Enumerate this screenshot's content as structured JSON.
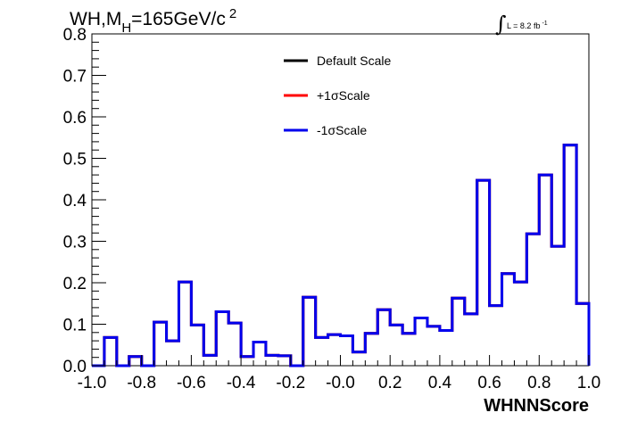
{
  "chart_data": {
    "type": "histogram",
    "title": {
      "main": "WH,M",
      "subscript": "H",
      "rest": "=165GeV/c",
      "superscript": "2"
    },
    "lumi": {
      "integral_symbol": "∫",
      "text": "L = 8.2 fb",
      "superscript": "-1"
    },
    "xlabel": "WHNNScore",
    "xlim": [
      -1.0,
      1.0
    ],
    "ylim": [
      0.0,
      0.8
    ],
    "x_ticks": [
      -1.0,
      -0.8,
      -0.6,
      -0.4,
      -0.2,
      0.0,
      0.2,
      0.4,
      0.6,
      0.8,
      1.0
    ],
    "x_tick_labels": [
      "-1.0",
      "-0.8",
      "-0.6",
      "-0.4",
      "-0.2",
      "-0.0",
      "0.2",
      "0.4",
      "0.6",
      "0.8",
      "1.0"
    ],
    "y_ticks": [
      0.0,
      0.1,
      0.2,
      0.3,
      0.4,
      0.5,
      0.6,
      0.7,
      0.8
    ],
    "y_tick_labels": [
      "0.0",
      "0.1",
      "0.2",
      "0.3",
      "0.4",
      "0.5",
      "0.6",
      "0.7",
      "0.8"
    ],
    "bin_edges": [
      -1.0,
      -0.95,
      -0.9,
      -0.85,
      -0.8,
      -0.75,
      -0.7,
      -0.65,
      -0.6,
      -0.55,
      -0.5,
      -0.45,
      -0.4,
      -0.35,
      -0.3,
      -0.25,
      -0.2,
      -0.15,
      -0.1,
      -0.05,
      0.0,
      0.05,
      0.1,
      0.15,
      0.2,
      0.25,
      0.3,
      0.35,
      0.4,
      0.45,
      0.5,
      0.55,
      0.6,
      0.65,
      0.7,
      0.75,
      0.8,
      0.85,
      0.9,
      0.95,
      1.0
    ],
    "legend_position": "top-center",
    "series": [
      {
        "name": "Default Scale",
        "color": "#000000",
        "values": [
          0.0,
          0.068,
          0.0,
          0.022,
          0.0,
          0.105,
          0.06,
          0.202,
          0.098,
          0.025,
          0.13,
          0.103,
          0.022,
          0.057,
          0.025,
          0.024,
          0.0,
          0.165,
          0.068,
          0.075,
          0.072,
          0.033,
          0.078,
          0.135,
          0.098,
          0.078,
          0.115,
          0.095,
          0.085,
          0.163,
          0.125,
          0.447,
          0.145,
          0.222,
          0.202,
          0.318,
          0.46,
          0.288,
          0.532,
          0.15
        ]
      },
      {
        "name": "+1σScale",
        "color": "#ff0000",
        "values": [
          0.0,
          0.068,
          0.0,
          0.022,
          0.0,
          0.105,
          0.06,
          0.202,
          0.098,
          0.025,
          0.13,
          0.103,
          0.022,
          0.057,
          0.025,
          0.024,
          0.0,
          0.165,
          0.068,
          0.075,
          0.072,
          0.033,
          0.078,
          0.135,
          0.098,
          0.078,
          0.115,
          0.095,
          0.085,
          0.163,
          0.125,
          0.447,
          0.145,
          0.222,
          0.202,
          0.318,
          0.46,
          0.288,
          0.532,
          0.15
        ]
      },
      {
        "name": "-1σScale",
        "color": "#0000ee",
        "values": [
          0.0,
          0.068,
          0.0,
          0.022,
          0.0,
          0.105,
          0.06,
          0.202,
          0.098,
          0.025,
          0.13,
          0.103,
          0.022,
          0.057,
          0.025,
          0.024,
          0.0,
          0.165,
          0.068,
          0.075,
          0.072,
          0.033,
          0.078,
          0.135,
          0.098,
          0.078,
          0.115,
          0.095,
          0.085,
          0.163,
          0.125,
          0.447,
          0.145,
          0.222,
          0.202,
          0.318,
          0.46,
          0.288,
          0.532,
          0.15
        ]
      }
    ]
  }
}
